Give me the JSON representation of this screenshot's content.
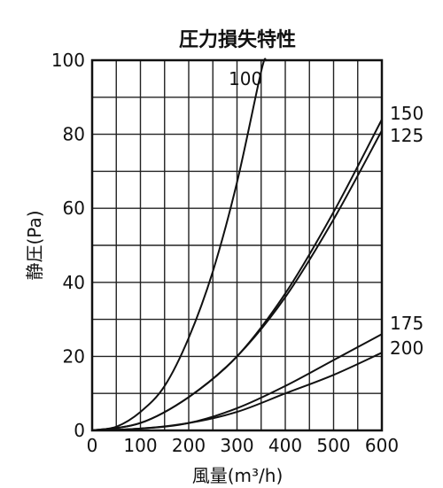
{
  "chart_data": {
    "type": "line",
    "title": "圧力損失特性",
    "xlabel": "風量(m³/h)",
    "ylabel": "静圧(Pa)",
    "xlim": [
      0,
      600
    ],
    "ylim": [
      0,
      100
    ],
    "x_ticks": [
      "0",
      "100",
      "200",
      "300",
      "400",
      "500",
      "600"
    ],
    "y_ticks": [
      "0",
      "20",
      "40",
      "60",
      "80",
      "100"
    ],
    "grid": true,
    "series": [
      {
        "name": "100",
        "x": [
          0,
          50,
          100,
          150,
          200,
          250,
          300,
          350,
          360
        ],
        "y": [
          0,
          1,
          5,
          12,
          25,
          43,
          67,
          97,
          100
        ]
      },
      {
        "name": "150",
        "x": [
          0,
          100,
          200,
          300,
          400,
          500,
          600
        ],
        "y": [
          0,
          2,
          9,
          20,
          37,
          59,
          84
        ]
      },
      {
        "name": "125",
        "x": [
          0,
          100,
          200,
          300,
          400,
          500,
          600
        ],
        "y": [
          0,
          2,
          9,
          20,
          36,
          57,
          81
        ]
      },
      {
        "name": "175",
        "x": [
          0,
          100,
          200,
          300,
          400,
          500,
          600
        ],
        "y": [
          0,
          0.5,
          2,
          6,
          12,
          19,
          26
        ]
      },
      {
        "name": "200",
        "x": [
          0,
          100,
          200,
          300,
          400,
          500,
          600
        ],
        "y": [
          0,
          0.5,
          2,
          5,
          10,
          15,
          21
        ]
      }
    ]
  }
}
